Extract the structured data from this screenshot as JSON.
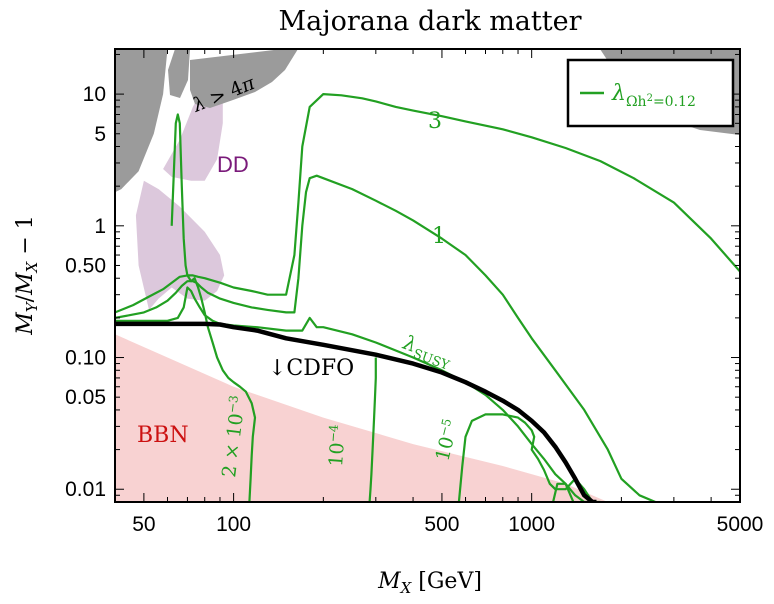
{
  "chart_data": {
    "type": "line",
    "title": "Majorana dark matter",
    "xlabel": "M_X [GeV]",
    "ylabel": "M_Y/M_X − 1",
    "xscale": "log",
    "yscale": "log",
    "xlim": [
      40,
      5000
    ],
    "ylim": [
      0.008,
      22
    ],
    "xticks": [
      {
        "value": 50,
        "label": "50"
      },
      {
        "value": 100,
        "label": "100"
      },
      {
        "value": 500,
        "label": "500"
      },
      {
        "value": 1000,
        "label": "1000"
      },
      {
        "value": 5000,
        "label": "5000"
      }
    ],
    "yticks": [
      {
        "value": 10,
        "label": "10"
      },
      {
        "value": 5,
        "label": "5"
      },
      {
        "value": 1,
        "label": "1"
      },
      {
        "value": 0.5,
        "label": "0.50"
      },
      {
        "value": 0.1,
        "label": "0.10"
      },
      {
        "value": 0.05,
        "label": "0.05"
      },
      {
        "value": 0.01,
        "label": "0.01"
      }
    ],
    "legend": {
      "label": "λ_{Ωh²=0.12}",
      "position": "top-right"
    },
    "colors": {
      "contour": "#22a022",
      "cdfo": "#000000",
      "bbn": "#f8d2d2",
      "dd": "#dcc8dc",
      "perturbativity": "#9b9b9b"
    },
    "regions": [
      {
        "name": "BBN",
        "label": "BBN",
        "color": "#f8d2d2",
        "points": [
          [
            40,
            0.008
          ],
          [
            40,
            0.15
          ],
          [
            60,
            0.1
          ],
          [
            100,
            0.06
          ],
          [
            200,
            0.035
          ],
          [
            400,
            0.022
          ],
          [
            800,
            0.015
          ],
          [
            1300,
            0.011
          ],
          [
            1800,
            0.008
          ]
        ]
      },
      {
        "name": "DD",
        "label": "DD",
        "color": "#dcc8dc",
        "points": [
          [
            58,
            2.7
          ],
          [
            66,
            4.5
          ],
          [
            73,
            8
          ],
          [
            82,
            13
          ],
          [
            88,
            15
          ],
          [
            92,
            14
          ],
          [
            92,
            6
          ],
          [
            88,
            3.2
          ],
          [
            80,
            2.2
          ],
          [
            72,
            2.2
          ],
          [
            62,
            2.35
          ]
        ]
      },
      {
        "name": "DD-lower",
        "label": "",
        "color": "#dcc8dc",
        "points": [
          [
            50,
            2.2
          ],
          [
            56,
            1.9
          ],
          [
            66,
            1.4
          ],
          [
            80,
            0.9
          ],
          [
            90,
            0.6
          ],
          [
            93,
            0.42
          ],
          [
            88,
            0.32
          ],
          [
            80,
            0.27
          ],
          [
            70,
            0.28
          ],
          [
            62,
            0.34
          ],
          [
            56,
            0.28
          ],
          [
            52,
            0.23
          ],
          [
            48,
            0.5
          ],
          [
            47,
            1.2
          ]
        ]
      },
      {
        "name": "perturbativity",
        "label": "λ > 4π",
        "color": "#9b9b9b",
        "points": [
          [
            44,
            22
          ],
          [
            60,
            22
          ],
          [
            58,
            10
          ],
          [
            54,
            5
          ],
          [
            48,
            2.6
          ],
          [
            42,
            1.9
          ],
          [
            40,
            1.8
          ],
          [
            40,
            22
          ]
        ]
      }
    ],
    "series": [
      {
        "name": "λ=3",
        "label": "3",
        "x": [
          40,
          46,
          52,
          58,
          63,
          66,
          70,
          73,
          76,
          80,
          90,
          100,
          115,
          130,
          150,
          160,
          165,
          170,
          180,
          200,
          230,
          270,
          300,
          350,
          400,
          500,
          600,
          800,
          1000,
          1300,
          1700,
          2200,
          3000,
          4000,
          5000
        ],
        "y": [
          0.22,
          0.25,
          0.29,
          0.33,
          0.38,
          0.41,
          0.42,
          0.42,
          0.41,
          0.4,
          0.37,
          0.34,
          0.32,
          0.3,
          0.3,
          0.6,
          1.5,
          4,
          8,
          10,
          9.8,
          9.3,
          8.8,
          8,
          7.5,
          6.8,
          6.2,
          5.4,
          4.7,
          3.9,
          3.1,
          2.3,
          1.5,
          0.8,
          0.45
        ]
      },
      {
        "name": "λ=1",
        "label": "1",
        "x": [
          40,
          45,
          50,
          55,
          60,
          64,
          67,
          70,
          73,
          75,
          78,
          82,
          90,
          100,
          115,
          130,
          150,
          160,
          165,
          170,
          175,
          180,
          190,
          200,
          250,
          300,
          350,
          400,
          500,
          600,
          700,
          800,
          900,
          1000,
          1200,
          1500,
          1800,
          2000,
          2300,
          2600
        ],
        "y": [
          0.2,
          0.21,
          0.22,
          0.24,
          0.27,
          0.31,
          0.35,
          0.38,
          0.38,
          0.37,
          0.34,
          0.31,
          0.28,
          0.26,
          0.24,
          0.23,
          0.22,
          0.22,
          0.4,
          1,
          1.8,
          2.3,
          2.4,
          2.3,
          1.9,
          1.55,
          1.3,
          1.1,
          0.8,
          0.6,
          0.42,
          0.3,
          0.2,
          0.14,
          0.08,
          0.04,
          0.02,
          0.012,
          0.009,
          0.008
        ]
      },
      {
        "name": "λ_SUSY",
        "label": "λ_SUSY",
        "x": [
          40,
          50,
          60,
          65,
          68,
          70,
          72,
          74,
          77,
          80,
          85,
          90,
          100,
          120,
          150,
          170,
          180,
          190,
          200,
          250,
          300,
          400,
          500,
          600,
          700,
          800,
          900,
          1000,
          1100,
          1200,
          1300,
          1400,
          1500,
          1600,
          1700
        ],
        "y": [
          0.19,
          0.19,
          0.19,
          0.2,
          0.24,
          0.34,
          0.32,
          0.28,
          0.24,
          0.21,
          0.19,
          0.18,
          0.175,
          0.17,
          0.16,
          0.16,
          0.2,
          0.17,
          0.17,
          0.15,
          0.13,
          0.1,
          0.08,
          0.065,
          0.052,
          0.04,
          0.03,
          0.022,
          0.017,
          0.013,
          0.011,
          0.009,
          0.008,
          0.008,
          0.008
        ]
      },
      {
        "name": "λ=2×10⁻³",
        "label": "2×10⁻³",
        "x": [
          62,
          63,
          64,
          65,
          66,
          67,
          68,
          69,
          70,
          72,
          74,
          76,
          78,
          80,
          82,
          85,
          88,
          92,
          96,
          100,
          105,
          110,
          115,
          118,
          116,
          115,
          114,
          113
        ],
        "y": [
          1.0,
          2.5,
          6,
          7,
          6,
          2,
          0.8,
          0.5,
          0.42,
          0.38,
          0.4,
          0.34,
          0.28,
          0.22,
          0.17,
          0.13,
          0.1,
          0.08,
          0.07,
          0.065,
          0.06,
          0.055,
          0.045,
          0.035,
          0.025,
          0.018,
          0.012,
          0.008
        ]
      },
      {
        "name": "λ=10⁻⁴",
        "label": "10⁻⁴",
        "x": [
          300,
          300,
          298,
          296,
          294,
          292,
          290,
          288,
          286
        ],
        "y": [
          0.1,
          0.07,
          0.05,
          0.035,
          0.025,
          0.018,
          0.013,
          0.01,
          0.008
        ]
      },
      {
        "name": "λ=10⁻⁵",
        "label": "10⁻⁵",
        "x": [
          570,
          585,
          600,
          630,
          700,
          800,
          900,
          950,
          1000,
          1020,
          1000,
          1050,
          1100,
          1150,
          1200,
          1300,
          1400,
          1500,
          1600
        ],
        "y": [
          0.008,
          0.015,
          0.025,
          0.033,
          0.037,
          0.037,
          0.035,
          0.032,
          0.028,
          0.025,
          0.02,
          0.017,
          0.014,
          0.011,
          0.01,
          0.01,
          0.012,
          0.01,
          0.008
        ]
      },
      {
        "name": "λ=10⁻⁵ (small)",
        "label": "",
        "x": [
          1180,
          1220,
          1300,
          1350,
          1380
        ],
        "y": [
          0.008,
          0.011,
          0.011,
          0.009,
          0.008
        ]
      }
    ],
    "cdfo": {
      "label": "↓CDFO",
      "x": [
        40,
        80,
        90,
        100,
        120,
        150,
        200,
        300,
        400,
        500,
        600,
        700,
        800,
        900,
        1000,
        1100,
        1200,
        1300,
        1400,
        1500,
        1600,
        1650
      ],
      "y": [
        0.18,
        0.18,
        0.178,
        0.17,
        0.16,
        0.14,
        0.125,
        0.105,
        0.09,
        0.077,
        0.065,
        0.055,
        0.047,
        0.04,
        0.033,
        0.027,
        0.021,
        0.016,
        0.012,
        0.009,
        0.008,
        0.008
      ]
    }
  }
}
